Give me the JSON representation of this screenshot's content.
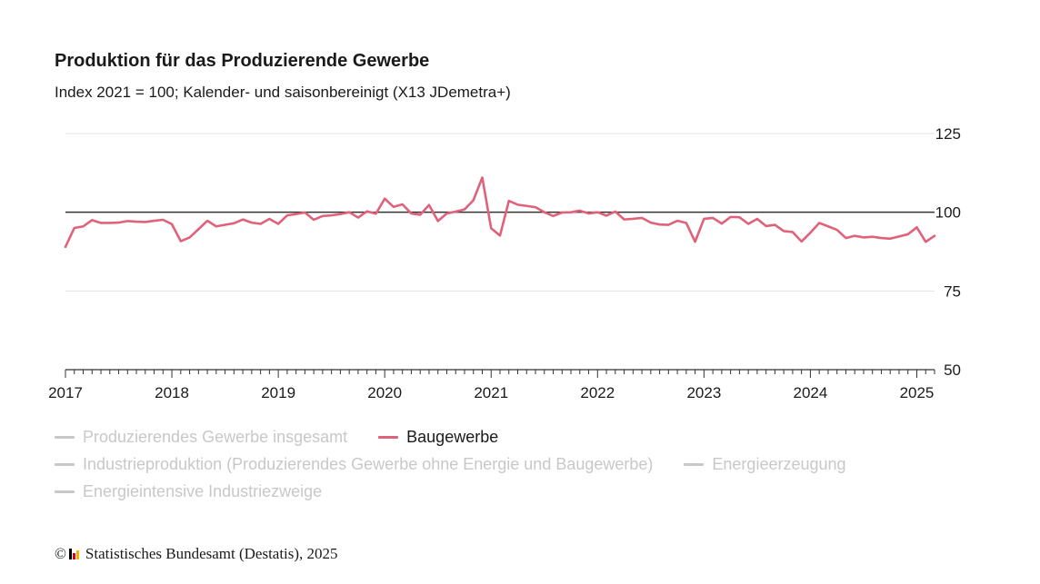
{
  "title": "Produktion für das Produzierende Gewerbe",
  "subtitle": "Index 2021 = 100; Kalender- und saisonbereinigt (X13 JDemetra+)",
  "legend": {
    "items": [
      {
        "label": "Produzierendes Gewerbe insgesamt",
        "active": false
      },
      {
        "label": "Baugewerbe",
        "active": true
      },
      {
        "label": "Industrieproduktion (Produzierendes Gewerbe ohne Energie und Baugewerbe)",
        "active": false
      },
      {
        "label": "Energieerzeugung",
        "active": false
      },
      {
        "label": "Energieintensive Industriezweige",
        "active": false
      }
    ]
  },
  "footer": {
    "copyright": "©",
    "source": "Statistisches Bundesamt (Destatis), 2025"
  },
  "colors": {
    "series": "#e0627a",
    "reference_line": "#333333",
    "grid": "#e3e3e3",
    "inactive": "#c8c8c8",
    "logo_black": "#000000",
    "logo_red": "#d9001b",
    "logo_gold": "#f0b400"
  },
  "chart_data": {
    "type": "line",
    "title": "Produktion für das Produzierende Gewerbe",
    "subtitle": "Index 2021 = 100; Kalender- und saisonbereinigt (X13 JDemetra+)",
    "x_start": "2017-01",
    "x_end": "2025-03",
    "xticks": [
      "2017",
      "2018",
      "2019",
      "2020",
      "2021",
      "2022",
      "2023",
      "2024",
      "2025"
    ],
    "yticks": [
      50,
      75,
      100,
      125
    ],
    "ylim": [
      50,
      125
    ],
    "reference_line": 100,
    "grid": true,
    "y_axis_position": "right",
    "series": [
      {
        "name": "Baugewerbe",
        "values": [
          89.0,
          95.0,
          95.5,
          97.5,
          96.6,
          96.6,
          96.7,
          97.2,
          97.0,
          96.9,
          97.3,
          97.6,
          96.2,
          90.8,
          92.0,
          94.6,
          97.3,
          95.5,
          96.0,
          96.5,
          97.7,
          96.7,
          96.3,
          97.9,
          96.3,
          99.0,
          99.4,
          99.9,
          97.6,
          98.8,
          99.0,
          99.4,
          100.0,
          98.3,
          100.3,
          99.5,
          104.3,
          101.7,
          102.5,
          99.6,
          99.2,
          102.3,
          97.2,
          99.6,
          100.2,
          100.9,
          103.8,
          111.0,
          94.9,
          92.6,
          103.6,
          102.4,
          102.0,
          101.6,
          100.0,
          98.8,
          99.9,
          100.0,
          100.5,
          99.6,
          100.0,
          98.9,
          100.2,
          97.7,
          97.9,
          98.2,
          96.7,
          96.1,
          96.0,
          97.3,
          96.6,
          90.6,
          97.9,
          98.2,
          96.4,
          98.5,
          98.4,
          96.3,
          97.9,
          95.6,
          96.0,
          94.0,
          93.7,
          90.7,
          93.5,
          96.6,
          95.5,
          94.4,
          91.8,
          92.5,
          92.0,
          92.2,
          91.8,
          91.6,
          92.3,
          93.0,
          95.2,
          90.6,
          92.5
        ]
      }
    ]
  }
}
